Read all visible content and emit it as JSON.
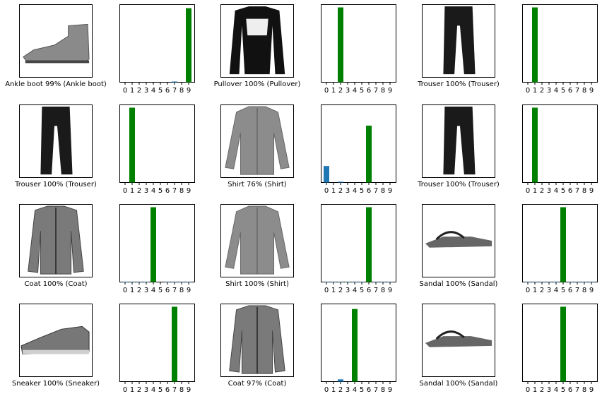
{
  "colors": {
    "predicted_correct": "#008000",
    "other": "#1f77b4",
    "axis": "#000000"
  },
  "chart_data": [
    {
      "type": "bar",
      "categories": [
        "0",
        "1",
        "2",
        "3",
        "4",
        "5",
        "6",
        "7",
        "8",
        "9"
      ],
      "values": [
        0,
        0,
        0,
        0,
        0,
        0,
        0,
        0.01,
        0,
        0.99
      ],
      "highlight_index": 9,
      "ylim": [
        0,
        1
      ],
      "image": {
        "icon": "ankle-boot-image",
        "caption": "Ankle boot 99% (Ankle boot)"
      }
    },
    {
      "type": "bar",
      "categories": [
        "0",
        "1",
        "2",
        "3",
        "4",
        "5",
        "6",
        "7",
        "8",
        "9"
      ],
      "values": [
        0,
        0,
        1.0,
        0,
        0,
        0,
        0,
        0,
        0,
        0
      ],
      "highlight_index": 2,
      "ylim": [
        0,
        1
      ],
      "image": {
        "icon": "pullover-image",
        "caption": "Pullover 100% (Pullover)"
      }
    },
    {
      "type": "bar",
      "categories": [
        "0",
        "1",
        "2",
        "3",
        "4",
        "5",
        "6",
        "7",
        "8",
        "9"
      ],
      "values": [
        0,
        1.0,
        0,
        0,
        0,
        0,
        0,
        0,
        0,
        0
      ],
      "highlight_index": 1,
      "ylim": [
        0,
        1
      ],
      "image": {
        "icon": "trouser-image",
        "caption": "Trouser 100% (Trouser)"
      }
    },
    {
      "type": "bar",
      "categories": [
        "0",
        "1",
        "2",
        "3",
        "4",
        "5",
        "6",
        "7",
        "8",
        "9"
      ],
      "values": [
        0,
        1.0,
        0,
        0,
        0,
        0,
        0,
        0,
        0,
        0
      ],
      "highlight_index": 1,
      "ylim": [
        0,
        1
      ],
      "image": {
        "icon": "trouser-image",
        "caption": "Trouser 100% (Trouser)"
      }
    },
    {
      "type": "bar",
      "categories": [
        "0",
        "1",
        "2",
        "3",
        "4",
        "5",
        "6",
        "7",
        "8",
        "9"
      ],
      "values": [
        0.22,
        0,
        0.01,
        0,
        0,
        0,
        0.76,
        0,
        0,
        0
      ],
      "highlight_index": 6,
      "ylim": [
        0,
        1
      ],
      "image": {
        "icon": "shirt-image",
        "caption": "Shirt 76% (Shirt)"
      }
    },
    {
      "type": "bar",
      "categories": [
        "0",
        "1",
        "2",
        "3",
        "4",
        "5",
        "6",
        "7",
        "8",
        "9"
      ],
      "values": [
        0,
        1.0,
        0,
        0,
        0,
        0,
        0,
        0,
        0,
        0
      ],
      "highlight_index": 1,
      "ylim": [
        0,
        1
      ],
      "image": {
        "icon": "trouser-image",
        "caption": "Trouser 100% (Trouser)"
      }
    },
    {
      "type": "bar",
      "categories": [
        "0",
        "1",
        "2",
        "3",
        "4",
        "5",
        "6",
        "7",
        "8",
        "9"
      ],
      "values": [
        0.005,
        0.005,
        0.005,
        0.005,
        1.0,
        0,
        0.005,
        0.005,
        0.005,
        0.005
      ],
      "highlight_index": 4,
      "ylim": [
        0,
        1
      ],
      "image": {
        "icon": "coat-image",
        "caption": "Coat 100% (Coat)"
      }
    },
    {
      "type": "bar",
      "categories": [
        "0",
        "1",
        "2",
        "3",
        "4",
        "5",
        "6",
        "7",
        "8",
        "9"
      ],
      "values": [
        0.005,
        0.005,
        0.005,
        0.005,
        0.005,
        0.005,
        1.0,
        0.005,
        0.005,
        0.005
      ],
      "highlight_index": 6,
      "ylim": [
        0,
        1
      ],
      "image": {
        "icon": "shirt-image",
        "caption": "Shirt 100% (Shirt)"
      }
    },
    {
      "type": "bar",
      "categories": [
        "0",
        "1",
        "2",
        "3",
        "4",
        "5",
        "6",
        "7",
        "8",
        "9"
      ],
      "values": [
        0.005,
        0.005,
        0.005,
        0.005,
        0.005,
        1.0,
        0.005,
        0.005,
        0.005,
        0.005
      ],
      "highlight_index": 5,
      "ylim": [
        0,
        1
      ],
      "image": {
        "icon": "sandal-image",
        "caption": "Sandal 100% (Sandal)"
      }
    },
    {
      "type": "bar",
      "categories": [
        "0",
        "1",
        "2",
        "3",
        "4",
        "5",
        "6",
        "7",
        "8",
        "9"
      ],
      "values": [
        0,
        0,
        0,
        0,
        0,
        0,
        0,
        1.0,
        0,
        0
      ],
      "highlight_index": 7,
      "ylim": [
        0,
        1
      ],
      "image": {
        "icon": "sneaker-image",
        "caption": "Sneaker 100% (Sneaker)"
      }
    },
    {
      "type": "bar",
      "categories": [
        "0",
        "1",
        "2",
        "3",
        "4",
        "5",
        "6",
        "7",
        "8",
        "9"
      ],
      "values": [
        0,
        0,
        0.03,
        0,
        0.97,
        0,
        0,
        0,
        0,
        0
      ],
      "highlight_index": 4,
      "ylim": [
        0,
        1
      ],
      "image": {
        "icon": "coat-image",
        "caption": "Coat 97% (Coat)"
      }
    },
    {
      "type": "bar",
      "categories": [
        "0",
        "1",
        "2",
        "3",
        "4",
        "5",
        "6",
        "7",
        "8",
        "9"
      ],
      "values": [
        0,
        0,
        0,
        0,
        0,
        1.0,
        0,
        0,
        0,
        0
      ],
      "highlight_index": 5,
      "ylim": [
        0,
        1
      ],
      "image": {
        "icon": "sandal-image",
        "caption": "Sandal 100% (Sandal)"
      }
    }
  ]
}
